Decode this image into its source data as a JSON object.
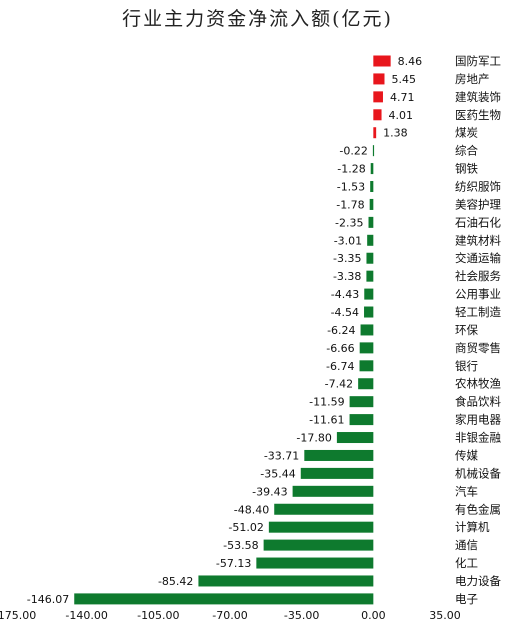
{
  "chart_data": {
    "type": "bar",
    "orientation": "horizontal",
    "title": "行业主力资金净流入额(亿元)",
    "xlabel": "",
    "ylabel": "",
    "xlim": [
      -175,
      35
    ],
    "x_ticks": [
      "-175.00",
      "-140.00",
      "-105.00",
      "-70.00",
      "-35.00",
      "0.00",
      "35.00"
    ],
    "grid": false,
    "legend": "none",
    "colors": {
      "positive": "#e8161c",
      "negative": "#0e7a2e"
    },
    "categories": [
      "国防军工",
      "房地产",
      "建筑装饰",
      "医药生物",
      "煤炭",
      "综合",
      "钢铁",
      "纺织服饰",
      "美容护理",
      "石油石化",
      "建筑材料",
      "交通运输",
      "社会服务",
      "公用事业",
      "轻工制造",
      "环保",
      "商贸零售",
      "银行",
      "农林牧渔",
      "食品饮料",
      "家用电器",
      "非银金融",
      "传媒",
      "机械设备",
      "汽车",
      "有色金属",
      "计算机",
      "通信",
      "化工",
      "电力设备",
      "电子"
    ],
    "values": [
      8.46,
      5.45,
      4.71,
      4.01,
      1.38,
      -0.22,
      -1.28,
      -1.53,
      -1.78,
      -2.35,
      -3.01,
      -3.35,
      -3.38,
      -4.43,
      -4.54,
      -6.24,
      -6.66,
      -6.74,
      -7.42,
      -11.59,
      -11.61,
      -17.8,
      -33.71,
      -35.44,
      -39.43,
      -48.4,
      -51.02,
      -53.58,
      -57.13,
      -85.42,
      -146.07
    ],
    "value_labels": [
      "8.46",
      "5.45",
      "4.71",
      "4.01",
      "1.38",
      "-0.22",
      "-1.28",
      "-1.53",
      "-1.78",
      "-2.35",
      "-3.01",
      "-3.35",
      "-3.38",
      "-4.43",
      "-4.54",
      "-6.24",
      "-6.66",
      "-6.74",
      "-7.42",
      "-11.59",
      "-11.61",
      "-17.80",
      "-33.71",
      "-35.44",
      "-39.43",
      "-48.40",
      "-51.02",
      "-53.58",
      "-57.13",
      "-85.42",
      "-146.07"
    ]
  }
}
